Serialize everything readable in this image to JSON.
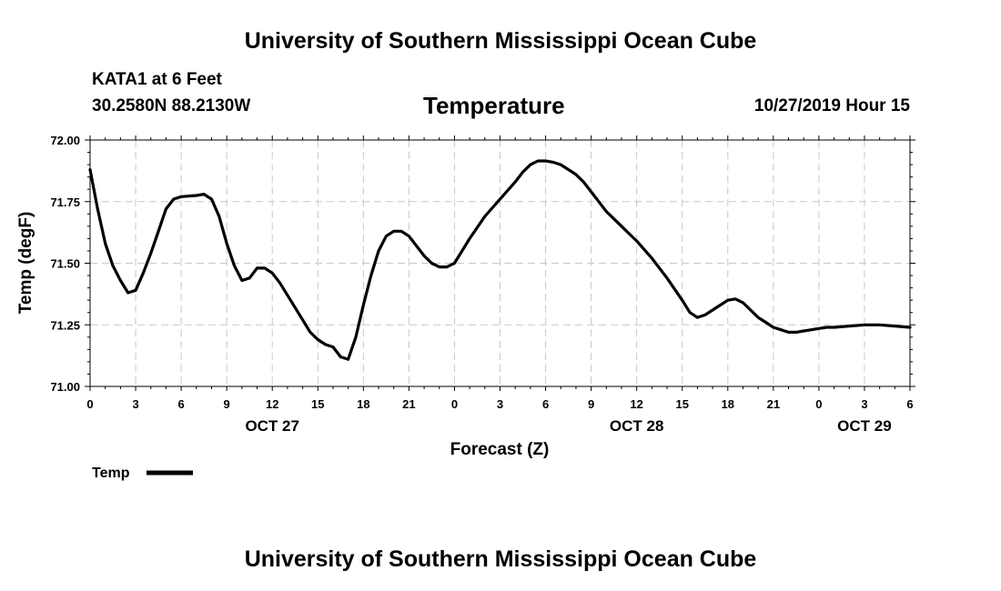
{
  "header": {
    "top_title": "University of Southern Mississippi Ocean Cube",
    "station": "KATA1 at 6 Feet",
    "coords": "30.2580N 88.2130W",
    "chart_title": "Temperature",
    "timestamp": "10/27/2019 Hour 15",
    "bottom_title": "University of Southern Mississippi Ocean Cube"
  },
  "chart_data": {
    "type": "line",
    "title": "Temperature",
    "xlabel": "Forecast (Z)",
    "ylabel": "Temp (degF)",
    "xlim": [
      0,
      54
    ],
    "ylim": [
      71.0,
      72.0
    ],
    "y_ticks": [
      "71.00",
      "71.25",
      "71.50",
      "71.75",
      "72.00"
    ],
    "y_tick_values": [
      71.0,
      71.25,
      71.5,
      71.75,
      72.0
    ],
    "x_ticks": [
      0,
      3,
      6,
      9,
      12,
      15,
      18,
      21,
      24,
      27,
      30,
      33,
      36,
      39,
      42,
      45,
      48,
      51,
      54
    ],
    "x_tick_labels": [
      "0",
      "3",
      "6",
      "9",
      "12",
      "15",
      "18",
      "21",
      "0",
      "3",
      "6",
      "9",
      "12",
      "15",
      "18",
      "21",
      "0",
      "3",
      "6"
    ],
    "date_labels": [
      {
        "label": "OCT 27",
        "x": 12
      },
      {
        "label": "OCT 28",
        "x": 36
      },
      {
        "label": "OCT 29",
        "x": 51
      }
    ],
    "grid": true,
    "legend_position": "bottom-left",
    "series": [
      {
        "name": "Temp",
        "color": "#000000",
        "x": [
          0,
          0.5,
          1,
          1.5,
          2,
          2.5,
          3,
          3.5,
          4,
          4.5,
          5,
          5.5,
          6,
          7,
          7.5,
          8,
          8.5,
          9,
          9.5,
          10,
          10.5,
          11,
          11.5,
          12,
          12.5,
          13,
          13.5,
          14,
          14.5,
          15,
          15.5,
          16,
          16.5,
          17,
          17.5,
          18,
          18.5,
          19,
          19.5,
          20,
          20.5,
          21,
          21.5,
          22,
          22.5,
          23,
          23.5,
          24,
          25,
          26,
          27,
          28,
          28.5,
          29,
          29.5,
          30,
          30.5,
          31,
          31.5,
          32,
          32.5,
          33,
          33.5,
          34,
          34.5,
          35,
          35.5,
          36,
          37,
          38,
          39,
          39.5,
          40,
          40.5,
          41,
          41.5,
          42,
          42.5,
          43,
          43.5,
          44,
          44.5,
          45,
          45.5,
          46,
          46.5,
          47,
          47.5,
          48,
          48.5,
          49,
          50,
          51,
          52,
          53,
          54
        ],
        "values": [
          71.88,
          71.72,
          71.58,
          71.49,
          71.43,
          71.38,
          71.39,
          71.46,
          71.54,
          71.63,
          71.72,
          71.76,
          71.77,
          71.775,
          71.78,
          71.76,
          71.69,
          71.58,
          71.49,
          71.43,
          71.44,
          71.48,
          71.48,
          71.46,
          71.42,
          71.37,
          71.32,
          71.27,
          71.22,
          71.19,
          71.17,
          71.16,
          71.12,
          71.11,
          71.2,
          71.33,
          71.45,
          71.55,
          71.61,
          71.63,
          71.63,
          71.61,
          71.57,
          71.53,
          71.5,
          71.485,
          71.485,
          71.5,
          71.6,
          71.69,
          71.76,
          71.83,
          71.87,
          71.9,
          71.915,
          71.915,
          71.91,
          71.9,
          71.88,
          71.86,
          71.83,
          71.79,
          71.75,
          71.71,
          71.68,
          71.65,
          71.62,
          71.59,
          71.52,
          71.44,
          71.35,
          71.3,
          71.28,
          71.29,
          71.31,
          71.33,
          71.35,
          71.355,
          71.34,
          71.31,
          71.28,
          71.26,
          71.24,
          71.23,
          71.22,
          71.22,
          71.225,
          71.23,
          71.235,
          71.24,
          71.24,
          71.245,
          71.25,
          71.25,
          71.245,
          71.24
        ]
      }
    ]
  }
}
